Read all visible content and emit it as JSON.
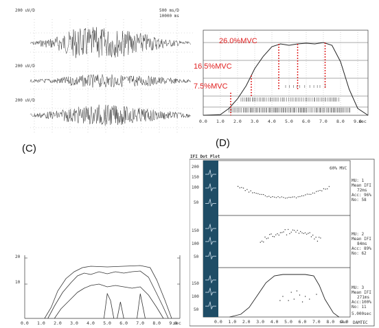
{
  "panel_labels": {
    "c": "(C)",
    "d": "(D)"
  },
  "panel_a": {
    "ch1_label": "200 uV/D",
    "ch2_label": "200 uV/D",
    "ch3_label": "200 uV/D",
    "time_scale": "500 ms/D",
    "range": "10000 ms"
  },
  "panel_b": {
    "annotations": [
      "26.0%MVC",
      "16.5%MVC",
      "7.5%MVC"
    ],
    "x_ticks": [
      "0.0",
      "1.0",
      "2.0",
      "3.0",
      "4.0",
      "5.0",
      "6.0",
      "7.0",
      "8.0",
      "9.0"
    ],
    "x_unit": "sec"
  },
  "panel_c": {
    "y_ticks": [
      "20",
      "10"
    ],
    "x_ticks": [
      "0.0",
      "1.0",
      "2.0",
      "3.0",
      "4.0",
      "5.0",
      "6.0",
      "7.0",
      "8.0",
      "9.0"
    ],
    "x_unit": "sec"
  },
  "panel_d": {
    "header_title": "IFI Dot Plot",
    "header_right": "60% MVC",
    "y_ticks": [
      "200",
      "150",
      "100",
      "50"
    ],
    "x_ticks": [
      "0.0",
      "1.0",
      "2.0",
      "3.0",
      "4.0",
      "5.0",
      "6.0",
      "7.0",
      "8.0",
      "9.0"
    ],
    "x_unit": "sec",
    "time_base": "5.000sec",
    "units": [
      {
        "mu": "MU: 1",
        "mean": "Mean IFI",
        "mean_val": "72ms",
        "acc": "Acc: 96%",
        "no": "No: 58"
      },
      {
        "mu": "MU: 2",
        "mean": "Mean IFI",
        "mean_val": "84ms",
        "acc": "Acc: 89%",
        "no": "No: 62"
      },
      {
        "mu": "MU: 3",
        "mean": "Mean IFI",
        "mean_val": "271ms",
        "acc": "Acc:100%",
        "no": "No: 11"
      }
    ],
    "footer_right": "DAMTEC"
  }
}
